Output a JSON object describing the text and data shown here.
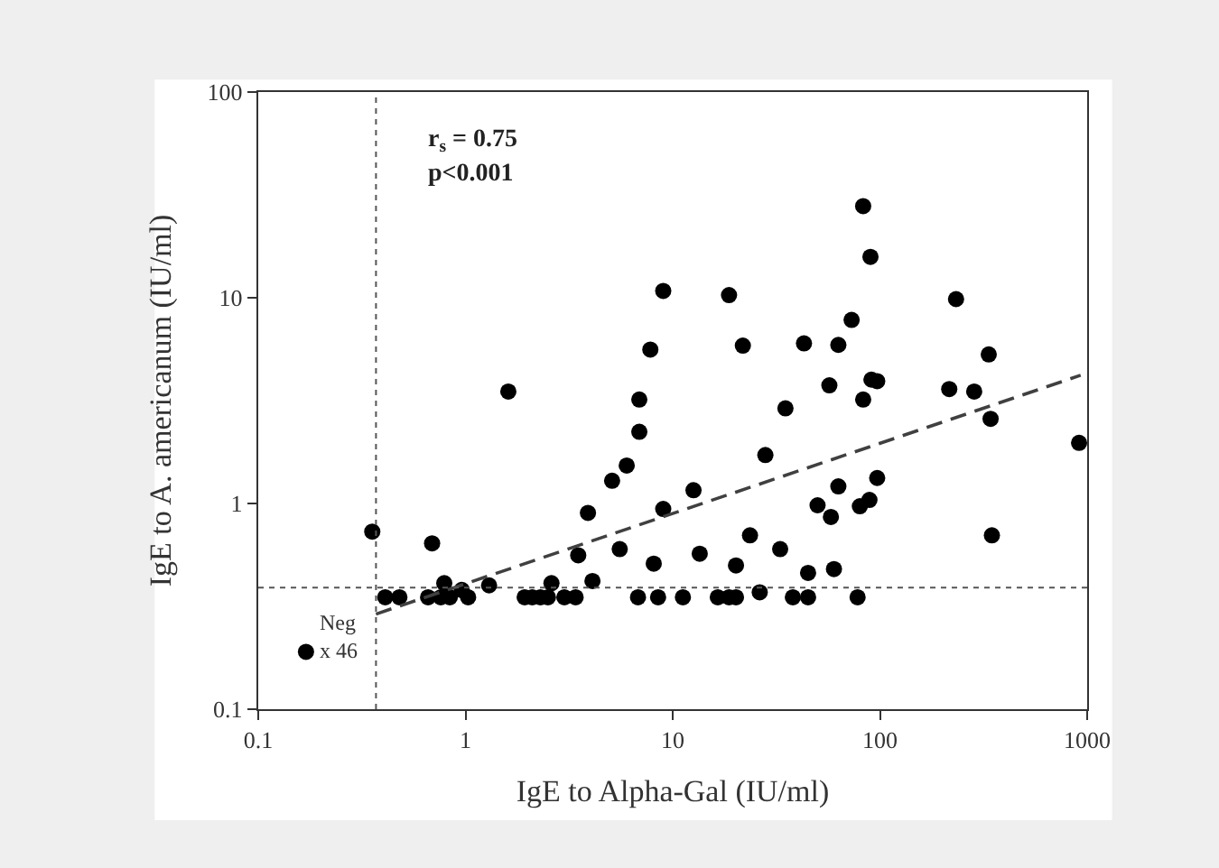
{
  "chart_data": {
    "type": "scatter",
    "xlabel": "IgE to Alpha-Gal (IU/ml)",
    "ylabel": "IgE to A. americanum (IU/ml)",
    "log": "xy",
    "xlim": [
      0.1,
      1000
    ],
    "ylim": [
      0.1,
      100
    ],
    "xticks": [
      0.1,
      1,
      10,
      100,
      1000
    ],
    "yticks": [
      0.1,
      1,
      10,
      100
    ],
    "marker": "circle",
    "series": [
      {
        "color": "#000000",
        "x": [
          0.355,
          0.41,
          0.48,
          0.66,
          0.69,
          0.79,
          0.76,
          0.84,
          0.96,
          1.03,
          1.3,
          1.61,
          1.93,
          2.1,
          2.3,
          2.5,
          2.6,
          3.0,
          3.4,
          3.5,
          3.9,
          4.1,
          5.1,
          5.55,
          6.0,
          6.8,
          6.9,
          6.9,
          7.8,
          8.1,
          8.5,
          9.0,
          9.0,
          11.2,
          12.6,
          13.5,
          16.5,
          18.7,
          18.7,
          20.2,
          20.2,
          21.8,
          23.6,
          26.3,
          28,
          33,
          35,
          38,
          43,
          45,
          45,
          50,
          57,
          58,
          60,
          63,
          63,
          73,
          78,
          80,
          83,
          83,
          89,
          90,
          91,
          97,
          97,
          216,
          233,
          285,
          335,
          342,
          347,
          914
        ],
        "values": [
          0.73,
          0.35,
          0.35,
          0.35,
          0.64,
          0.41,
          0.35,
          0.35,
          0.38,
          0.35,
          0.4,
          3.5,
          0.35,
          0.35,
          0.35,
          0.35,
          0.41,
          0.35,
          0.35,
          0.56,
          0.9,
          0.42,
          1.29,
          0.6,
          1.53,
          0.35,
          2.23,
          3.2,
          5.6,
          0.51,
          0.35,
          10.8,
          0.94,
          0.35,
          1.16,
          0.57,
          0.35,
          10.3,
          0.35,
          0.5,
          0.35,
          5.85,
          0.7,
          0.37,
          1.72,
          0.6,
          2.9,
          0.35,
          6.0,
          0.46,
          0.35,
          0.98,
          3.75,
          0.86,
          0.48,
          5.9,
          1.21,
          7.8,
          0.35,
          0.97,
          27.9,
          3.2,
          1.04,
          15.8,
          4.0,
          3.93,
          1.33,
          3.6,
          9.85,
          3.5,
          5.3,
          2.58,
          0.7,
          1.97
        ]
      },
      {
        "color": "#000000",
        "x": [
          0.17
        ],
        "values": [
          0.19
        ]
      },
      {
        "type": "line",
        "color": "#404040",
        "line_style": "dashed",
        "marker": "none",
        "x": [
          0.37,
          930
        ],
        "values": [
          0.29,
          4.2
        ]
      }
    ],
    "ref_lines": [
      {
        "axis": "x",
        "value": 0.37,
        "color": "#555555",
        "line_style": "dotted"
      },
      {
        "axis": "y",
        "value": 0.39,
        "color": "#555555",
        "line_style": "dotted"
      }
    ],
    "annotations": [
      "r$_{s}$ = 0.75",
      "p<0.001",
      {
        "text": "Neg x 46",
        "x": 0.17,
        "y": 0.19
      }
    ]
  }
}
